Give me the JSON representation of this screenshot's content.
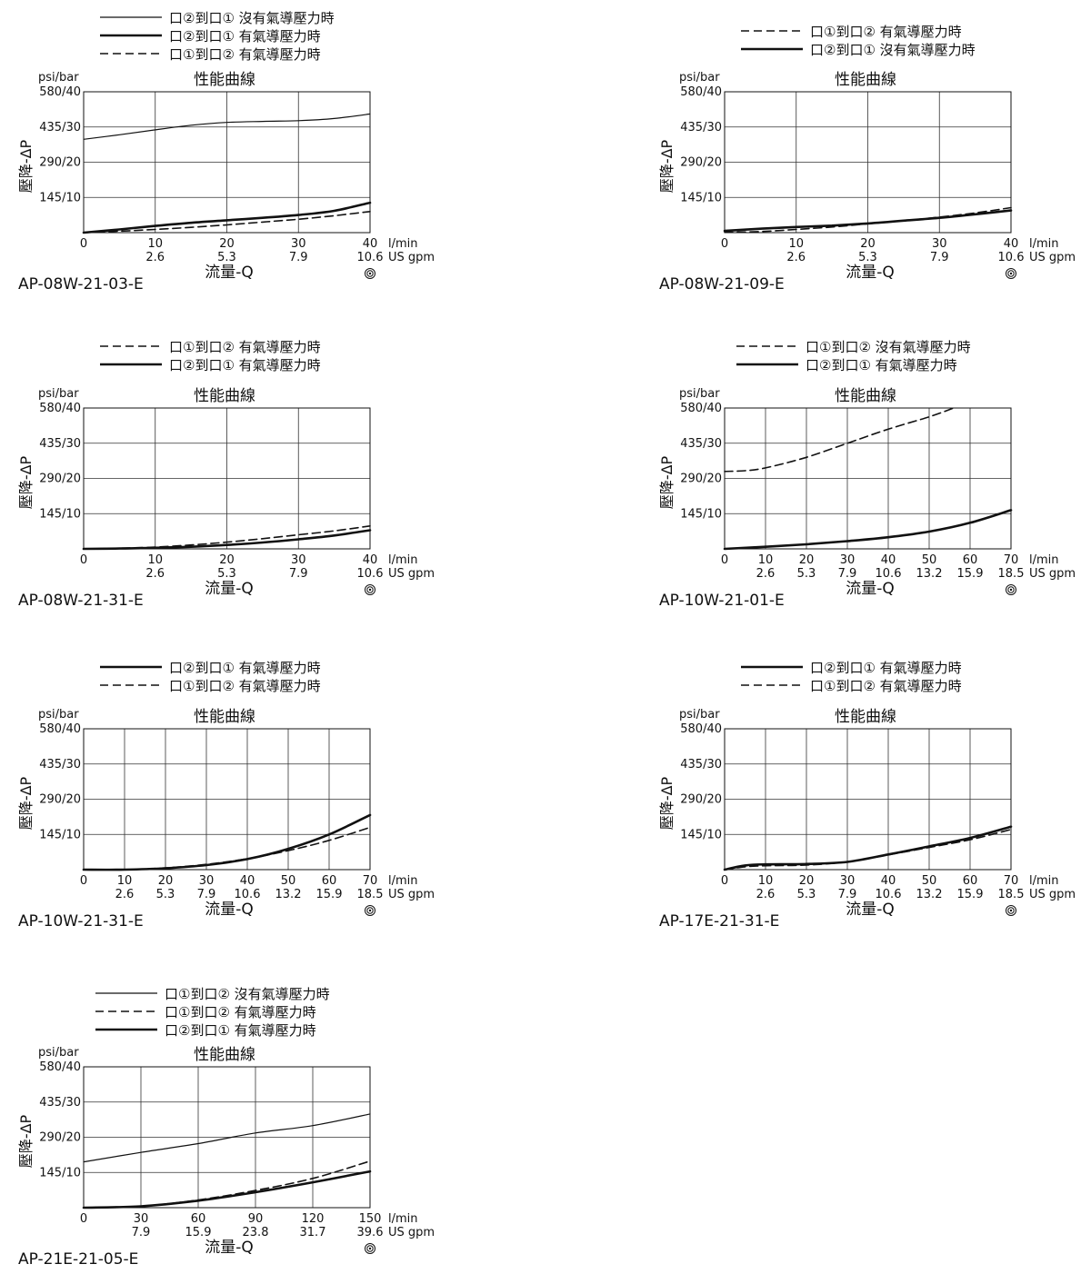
{
  "common": {
    "y_unit": "psi/bar",
    "ylabel": "壓降-ΔP",
    "xlabel": "流量-Q",
    "lpm_unit": "l/min",
    "gpm_unit": "US gpm",
    "title": "性能曲線",
    "y_ticks": [
      "145/10",
      "290/20",
      "435/30",
      "580/40"
    ],
    "icon": "circle-target-icon"
  },
  "chart_data": [
    {
      "type": "line",
      "model": "AP-08W-21-03-E",
      "title": "性能曲線",
      "xlim": [
        0,
        40
      ],
      "ylim": [
        0,
        40
      ],
      "x_ticks": [
        0,
        10,
        20,
        30,
        40
      ],
      "gpm_ticks": [
        "2.6",
        "5.3",
        "7.9",
        "10.6"
      ],
      "series": [
        {
          "name": "口②到口① 沒有氣導壓力時",
          "style": "thin",
          "x": [
            0,
            5,
            10,
            15,
            20,
            25,
            30,
            35,
            40
          ],
          "y": [
            26.5,
            27.8,
            29.2,
            30.5,
            31.3,
            31.6,
            31.8,
            32.4,
            33.7
          ]
        },
        {
          "name": "口②到口① 有氣導壓力時",
          "style": "thick",
          "x": [
            0,
            5,
            10,
            15,
            20,
            25,
            30,
            35,
            40
          ],
          "y": [
            0,
            0.9,
            1.9,
            2.8,
            3.5,
            4.2,
            5,
            6.2,
            8.5
          ]
        },
        {
          "name": "口①到口② 有氣導壓力時",
          "style": "dash",
          "x": [
            0,
            5,
            10,
            15,
            20,
            25,
            30,
            35,
            40
          ],
          "y": [
            0,
            0.4,
            0.9,
            1.5,
            2.2,
            3,
            3.8,
            4.8,
            6
          ]
        }
      ]
    },
    {
      "type": "line",
      "model": "AP-08W-21-09-E",
      "title": "性能曲線",
      "xlim": [
        0,
        40
      ],
      "ylim": [
        0,
        40
      ],
      "x_ticks": [
        0,
        10,
        20,
        30,
        40
      ],
      "gpm_ticks": [
        "2.6",
        "5.3",
        "7.9",
        "10.6"
      ],
      "series": [
        {
          "name": "口①到口② 有氣導壓力時",
          "style": "dash",
          "x": [
            0,
            5,
            10,
            15,
            20,
            25,
            30,
            35,
            40
          ],
          "y": [
            0.1,
            0.3,
            0.9,
            1.6,
            2.5,
            3.4,
            4.4,
            5.6,
            7.1
          ]
        },
        {
          "name": "口②到口① 沒有氣導壓力時",
          "style": "thick",
          "x": [
            0,
            5,
            10,
            15,
            20,
            25,
            30,
            35,
            40
          ],
          "y": [
            0.5,
            1.1,
            1.6,
            2,
            2.6,
            3.4,
            4.2,
            5.2,
            6.3
          ]
        }
      ]
    },
    {
      "type": "line",
      "model": "AP-08W-21-31-E",
      "title": "性能曲線",
      "xlim": [
        0,
        40
      ],
      "ylim": [
        0,
        40
      ],
      "x_ticks": [
        0,
        10,
        20,
        30,
        40
      ],
      "gpm_ticks": [
        "2.6",
        "5.3",
        "7.9",
        "10.6"
      ],
      "series": [
        {
          "name": "口①到口② 有氣導壓力時",
          "style": "dash",
          "x": [
            0,
            5,
            10,
            15,
            20,
            25,
            30,
            35,
            40
          ],
          "y": [
            0,
            0.2,
            0.5,
            1.1,
            1.9,
            2.9,
            4,
            5.1,
            6.5
          ]
        },
        {
          "name": "口②到口① 有氣導壓力時",
          "style": "thick",
          "x": [
            0,
            5,
            10,
            15,
            20,
            25,
            30,
            35,
            40
          ],
          "y": [
            0,
            0.1,
            0.3,
            0.6,
            1.1,
            1.8,
            2.7,
            3.8,
            5.3
          ]
        }
      ]
    },
    {
      "type": "line",
      "model": "AP-10W-21-01-E",
      "title": "性能曲線",
      "xlim": [
        0,
        70
      ],
      "ylim": [
        0,
        40
      ],
      "x_ticks": [
        0,
        10,
        20,
        30,
        40,
        50,
        60,
        70
      ],
      "gpm_ticks": [
        "2.6",
        "5.3",
        "7.9",
        "10.6",
        "13.2",
        "15.9",
        "18.5"
      ],
      "series": [
        {
          "name": "口①到口② 沒有氣導壓力時",
          "style": "dash",
          "x": [
            0,
            5,
            10,
            20,
            30,
            40,
            50,
            56
          ],
          "y": [
            22,
            22.2,
            23,
            26,
            30,
            34,
            37.5,
            40
          ]
        },
        {
          "name": "口②到口① 有氣導壓力時",
          "style": "thick",
          "x": [
            0,
            10,
            20,
            30,
            40,
            50,
            60,
            70
          ],
          "y": [
            0,
            0.6,
            1.3,
            2.2,
            3.3,
            4.9,
            7.4,
            11
          ]
        }
      ]
    },
    {
      "type": "line",
      "model": "AP-10W-21-31-E",
      "title": "性能曲線",
      "xlim": [
        0,
        70
      ],
      "ylim": [
        0,
        40
      ],
      "x_ticks": [
        0,
        10,
        20,
        30,
        40,
        50,
        60,
        70
      ],
      "gpm_ticks": [
        "2.6",
        "5.3",
        "7.9",
        "10.6",
        "13.2",
        "15.9",
        "18.5"
      ],
      "series": [
        {
          "name": "口②到口① 有氣導壓力時",
          "style": "thick",
          "x": [
            0,
            10,
            20,
            30,
            40,
            50,
            60,
            70
          ],
          "y": [
            0,
            0,
            0.4,
            1.3,
            3,
            5.9,
            10,
            15.5
          ]
        },
        {
          "name": "口①到口② 有氣導壓力時",
          "style": "dash",
          "x": [
            0,
            10,
            20,
            30,
            40,
            50,
            60,
            70
          ],
          "y": [
            0,
            0,
            0.5,
            1.5,
            3.1,
            5.4,
            8.3,
            12
          ]
        }
      ]
    },
    {
      "type": "line",
      "model": "AP-17E-21-31-E",
      "title": "性能曲線",
      "xlim": [
        0,
        70
      ],
      "ylim": [
        0,
        40
      ],
      "x_ticks": [
        0,
        10,
        20,
        30,
        40,
        50,
        60,
        70
      ],
      "gpm_ticks": [
        "2.6",
        "5.3",
        "7.9",
        "10.6",
        "13.2",
        "15.9",
        "18.5"
      ],
      "series": [
        {
          "name": "口②到口① 有氣導壓力時",
          "style": "thick",
          "x": [
            0,
            5,
            10,
            20,
            30,
            40,
            50,
            60,
            70
          ],
          "y": [
            0,
            1.2,
            1.5,
            1.6,
            2.2,
            4.3,
            6.6,
            9,
            12.2
          ]
        },
        {
          "name": "口①到口② 有氣導壓力時",
          "style": "dash",
          "x": [
            0,
            5,
            10,
            20,
            30,
            40,
            50,
            60,
            70
          ],
          "y": [
            0,
            0.8,
            1.1,
            1.3,
            2.2,
            4.2,
            6.3,
            8.5,
            11.4
          ]
        }
      ]
    },
    {
      "type": "line",
      "model": "AP-21E-21-05-E",
      "title": "性能曲線",
      "xlim": [
        0,
        150
      ],
      "ylim": [
        0,
        40
      ],
      "x_ticks": [
        0,
        30,
        60,
        90,
        120,
        150
      ],
      "gpm_ticks": [
        "7.9",
        "15.9",
        "23.8",
        "31.7",
        "39.6"
      ],
      "series": [
        {
          "name": "口①到口② 沒有氣導壓力時",
          "style": "thin",
          "x": [
            0,
            30,
            60,
            90,
            120,
            150
          ],
          "y": [
            13,
            15.7,
            18.2,
            21.2,
            23.3,
            26.6
          ]
        },
        {
          "name": "口①到口② 有氣導壓力時",
          "style": "dash",
          "x": [
            0,
            30,
            60,
            90,
            120,
            150
          ],
          "y": [
            0,
            0.4,
            2.2,
            4.9,
            8.3,
            13.2
          ]
        },
        {
          "name": "口②到口① 有氣導壓力時",
          "style": "thick",
          "x": [
            0,
            30,
            60,
            90,
            120,
            150
          ],
          "y": [
            0,
            0.4,
            2,
            4.4,
            7.2,
            10.3
          ]
        }
      ]
    }
  ]
}
